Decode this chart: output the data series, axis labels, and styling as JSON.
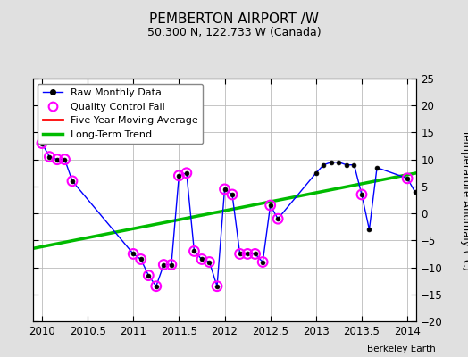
{
  "title": "PEMBERTON AIRPORT /W",
  "subtitle": "50.300 N, 122.733 W (Canada)",
  "ylabel": "Temperature Anomaly (°C)",
  "credit": "Berkeley Earth",
  "xlim": [
    2009.9,
    2014.1
  ],
  "ylim": [
    -20,
    25
  ],
  "yticks": [
    -20,
    -15,
    -10,
    -5,
    0,
    5,
    10,
    15,
    20,
    25
  ],
  "xticks": [
    2010,
    2010.5,
    2011,
    2011.5,
    2012,
    2012.5,
    2013,
    2013.5,
    2014
  ],
  "background_color": "#e0e0e0",
  "plot_bg_color": "#ffffff",
  "raw_line_color": "#0000ff",
  "raw_marker_color": "#000000",
  "qc_marker_color": "#ff00ff",
  "trend_color": "#00bb00",
  "mavg_color": "#ff0000",
  "raw_x": [
    2010.0,
    2010.083,
    2010.167,
    2010.25,
    2010.333,
    2011.0,
    2011.083,
    2011.167,
    2011.25,
    2011.333,
    2011.417,
    2011.5,
    2011.583,
    2011.667,
    2011.75,
    2011.833,
    2011.917,
    2012.0,
    2012.083,
    2012.167,
    2012.25,
    2012.333,
    2012.417,
    2012.5,
    2012.583,
    2013.0,
    2013.083,
    2013.167,
    2013.25,
    2013.333,
    2013.417,
    2013.5,
    2013.583,
    2013.667,
    2014.0,
    2014.083
  ],
  "raw_y": [
    13.0,
    10.5,
    10.0,
    10.0,
    6.0,
    -7.5,
    -8.5,
    -11.5,
    -13.5,
    -9.5,
    -9.5,
    7.0,
    7.5,
    -7.0,
    -8.5,
    -9.0,
    -13.5,
    4.5,
    3.5,
    -7.5,
    -7.5,
    -7.5,
    -9.0,
    1.5,
    -1.0,
    7.5,
    9.0,
    9.5,
    9.5,
    9.0,
    9.0,
    3.5,
    -3.0,
    8.5,
    6.5,
    4.0
  ],
  "qc_x": [
    2010.0,
    2010.083,
    2010.167,
    2010.25,
    2010.333,
    2011.0,
    2011.083,
    2011.167,
    2011.25,
    2011.333,
    2011.417,
    2011.5,
    2011.583,
    2011.667,
    2011.75,
    2011.833,
    2011.917,
    2012.0,
    2012.083,
    2012.167,
    2012.25,
    2012.333,
    2012.417,
    2012.5,
    2012.583,
    2013.5,
    2014.0
  ],
  "qc_y": [
    13.0,
    10.5,
    10.0,
    10.0,
    6.0,
    -7.5,
    -8.5,
    -11.5,
    -13.5,
    -9.5,
    -9.5,
    7.0,
    7.5,
    -7.0,
    -8.5,
    -9.0,
    -13.5,
    4.5,
    3.5,
    -7.5,
    -7.5,
    -7.5,
    -9.0,
    1.5,
    -1.0,
    3.5,
    6.5
  ],
  "trend_x": [
    2009.9,
    2014.1
  ],
  "trend_y": [
    -6.5,
    7.5
  ],
  "legend_labels": [
    "Raw Monthly Data",
    "Quality Control Fail",
    "Five Year Moving Average",
    "Long-Term Trend"
  ]
}
